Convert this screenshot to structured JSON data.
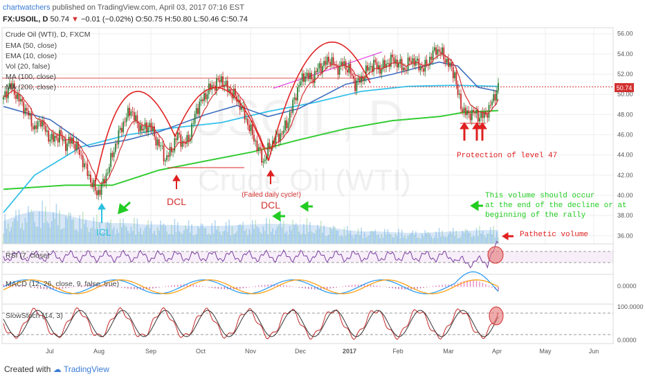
{
  "header": {
    "author": "chartwatchers",
    "published": "published on TradingView.com, April 03, 2017 07:16 EST",
    "symbol": "FX:USOIL, D",
    "last": "50.74",
    "change": "−0.01 (−0.02%)",
    "ohlc": "O:50.75 H:50.80 L:50.46 C:50.74"
  },
  "legend": {
    "title": "Crude Oil (WTI), D, FXCM",
    "items": [
      "EMA (50, close)",
      "EMA (10, close)",
      "Vol (20, false)",
      "MA (100, close)",
      "MA (200, close)"
    ]
  },
  "watermark": {
    "big": "USOIL, D",
    "small": "Crude Oil (WTI)"
  },
  "price_label": "50.74",
  "panes": {
    "rsi": {
      "label": "RSI (7, close)"
    },
    "macd": {
      "label": "MACD (12, 26, close, 9, false, true)",
      "tick": "0.0000"
    },
    "stoch": {
      "label": "SlowStoch (14, 3)",
      "ticks": [
        "100.0000",
        "0.0000"
      ]
    }
  },
  "annotations": {
    "icl": "ICL",
    "dcl1": "DCL",
    "dcl2": "DCL",
    "failed": "(Failed daily cycle!)",
    "protection": "Protection of level 47",
    "volume_note": [
      "This volume should occur",
      "at the end of the decline or at",
      "beginning of the rally"
    ],
    "pathetic": "Pathetic volume"
  },
  "colors": {
    "ema50": "#3f6fbf",
    "ema10": "#d32f2f",
    "ma100": "#34c0ea",
    "ma200": "#33cc33",
    "annotation_red": "#e02020",
    "annotation_green": "#22cc22",
    "annotation_cyan": "#2bc0e0",
    "up_candle": "#2e7d32",
    "down_candle": "#c62828",
    "trend": "#e040e0",
    "hline": "#e05050"
  },
  "footer": {
    "created": "Created with",
    "brand": "TradingView"
  },
  "chart_data": {
    "type": "candlestick",
    "x_ticks": [
      "Jul",
      "Aug",
      "Sep",
      "Oct",
      "Nov",
      "Dec",
      "2017",
      "Feb",
      "Mar",
      "Apr",
      "May",
      "Jun"
    ],
    "y_ticks": [
      "56.00",
      "54.00",
      "52.00",
      "50.00",
      "48.00",
      "46.00",
      "44.00",
      "42.00",
      "40.00",
      "38.00",
      "36.00"
    ],
    "ylim": [
      35.2,
      56.6
    ],
    "reference_level": 50.74,
    "resistance_level": 51.6,
    "trend_line": {
      "from": 50.6,
      "to": 54.2
    },
    "close_path": [
      [
        0,
        49.5
      ],
      [
        4,
        51.0
      ],
      [
        8,
        50.0
      ],
      [
        12,
        49.0
      ],
      [
        16,
        48.0
      ],
      [
        20,
        46.5
      ],
      [
        24,
        47.5
      ],
      [
        28,
        46.0
      ],
      [
        32,
        45.5
      ],
      [
        36,
        46.0
      ],
      [
        40,
        45.0
      ],
      [
        44,
        45.5
      ],
      [
        48,
        44.5
      ],
      [
        52,
        43.0
      ],
      [
        56,
        41.5
      ],
      [
        60,
        40.2
      ],
      [
        63,
        40.8
      ],
      [
        66,
        42.0
      ],
      [
        70,
        44.0
      ],
      [
        74,
        46.0
      ],
      [
        78,
        47.5
      ],
      [
        82,
        48.5
      ],
      [
        86,
        47.0
      ],
      [
        90,
        46.5
      ],
      [
        94,
        47.0
      ],
      [
        98,
        45.5
      ],
      [
        102,
        44.5
      ],
      [
        104,
        43.5
      ],
      [
        108,
        44.5
      ],
      [
        112,
        46.0
      ],
      [
        116,
        45.0
      ],
      [
        120,
        46.0
      ],
      [
        124,
        48.5
      ],
      [
        128,
        49.5
      ],
      [
        132,
        50.5
      ],
      [
        136,
        51.0
      ],
      [
        140,
        51.5
      ],
      [
        144,
        50.5
      ],
      [
        148,
        50.0
      ],
      [
        152,
        49.0
      ],
      [
        156,
        47.5
      ],
      [
        160,
        46.0
      ],
      [
        164,
        44.5
      ],
      [
        167,
        43.3
      ],
      [
        170,
        44.5
      ],
      [
        174,
        45.5
      ],
      [
        178,
        46.0
      ],
      [
        182,
        47.0
      ],
      [
        186,
        49.0
      ],
      [
        190,
        51.0
      ],
      [
        194,
        52.0
      ],
      [
        198,
        51.5
      ],
      [
        202,
        52.5
      ],
      [
        206,
        53.0
      ],
      [
        210,
        53.5
      ],
      [
        214,
        52.5
      ],
      [
        218,
        53.0
      ],
      [
        222,
        52.5
      ],
      [
        226,
        51.0
      ],
      [
        230,
        51.5
      ],
      [
        234,
        52.5
      ],
      [
        238,
        53.0
      ],
      [
        242,
        52.5
      ],
      [
        246,
        53.0
      ],
      [
        250,
        53.5
      ],
      [
        254,
        53.0
      ],
      [
        258,
        52.5
      ],
      [
        262,
        53.5
      ],
      [
        266,
        53.0
      ],
      [
        270,
        52.5
      ],
      [
        274,
        53.5
      ],
      [
        278,
        54.5
      ],
      [
        282,
        54.0
      ],
      [
        286,
        53.0
      ],
      [
        290,
        52.0
      ],
      [
        292,
        50.0
      ],
      [
        295,
        48.5
      ],
      [
        298,
        48.0
      ],
      [
        302,
        48.2
      ],
      [
        306,
        47.8
      ],
      [
        309,
        47.9
      ],
      [
        312,
        48.5
      ],
      [
        315,
        49.7
      ],
      [
        318,
        50.7
      ]
    ],
    "indicators": {
      "ema50": [
        [
          0,
          48.8
        ],
        [
          30,
          47.5
        ],
        [
          55,
          44.8
        ],
        [
          80,
          45.5
        ],
        [
          100,
          46.3
        ],
        [
          130,
          48.0
        ],
        [
          150,
          48.9
        ],
        [
          170,
          47.8
        ],
        [
          190,
          48.6
        ],
        [
          220,
          51.0
        ],
        [
          250,
          52.0
        ],
        [
          280,
          53.2
        ],
        [
          292,
          52.8
        ],
        [
          305,
          50.7
        ],
        [
          318,
          50.3
        ]
      ],
      "ma100": [
        [
          0,
          38.3
        ],
        [
          20,
          42.0
        ],
        [
          50,
          44.8
        ],
        [
          80,
          46.0
        ],
        [
          110,
          46.7
        ],
        [
          140,
          47.2
        ],
        [
          170,
          48.3
        ],
        [
          200,
          49.2
        ],
        [
          230,
          50.3
        ],
        [
          260,
          50.8
        ],
        [
          290,
          50.9
        ],
        [
          318,
          50.8
        ]
      ],
      "ma200": [
        [
          0,
          40.6
        ],
        [
          40,
          41.0
        ],
        [
          70,
          41.0
        ],
        [
          100,
          42.5
        ],
        [
          130,
          43.4
        ],
        [
          160,
          44.3
        ],
        [
          190,
          45.5
        ],
        [
          220,
          46.6
        ],
        [
          250,
          47.4
        ],
        [
          280,
          47.8
        ],
        [
          295,
          48.2
        ],
        [
          318,
          48.4
        ]
      ]
    },
    "volume": [
      [
        0,
        33
      ],
      [
        10,
        42
      ],
      [
        20,
        48
      ],
      [
        30,
        46
      ],
      [
        40,
        42
      ],
      [
        50,
        36
      ],
      [
        60,
        32
      ],
      [
        70,
        30
      ],
      [
        80,
        30
      ],
      [
        90,
        28
      ],
      [
        100,
        28
      ],
      [
        110,
        27
      ],
      [
        120,
        26
      ],
      [
        130,
        26
      ],
      [
        140,
        26
      ],
      [
        150,
        27
      ],
      [
        160,
        28
      ],
      [
        170,
        29
      ],
      [
        180,
        29
      ],
      [
        190,
        28
      ],
      [
        200,
        27
      ],
      [
        210,
        24
      ],
      [
        220,
        20
      ],
      [
        230,
        18
      ],
      [
        240,
        18
      ],
      [
        250,
        17
      ],
      [
        260,
        16
      ],
      [
        270,
        16
      ],
      [
        280,
        17
      ],
      [
        290,
        18
      ],
      [
        300,
        19
      ],
      [
        310,
        20
      ],
      [
        318,
        20
      ]
    ]
  }
}
